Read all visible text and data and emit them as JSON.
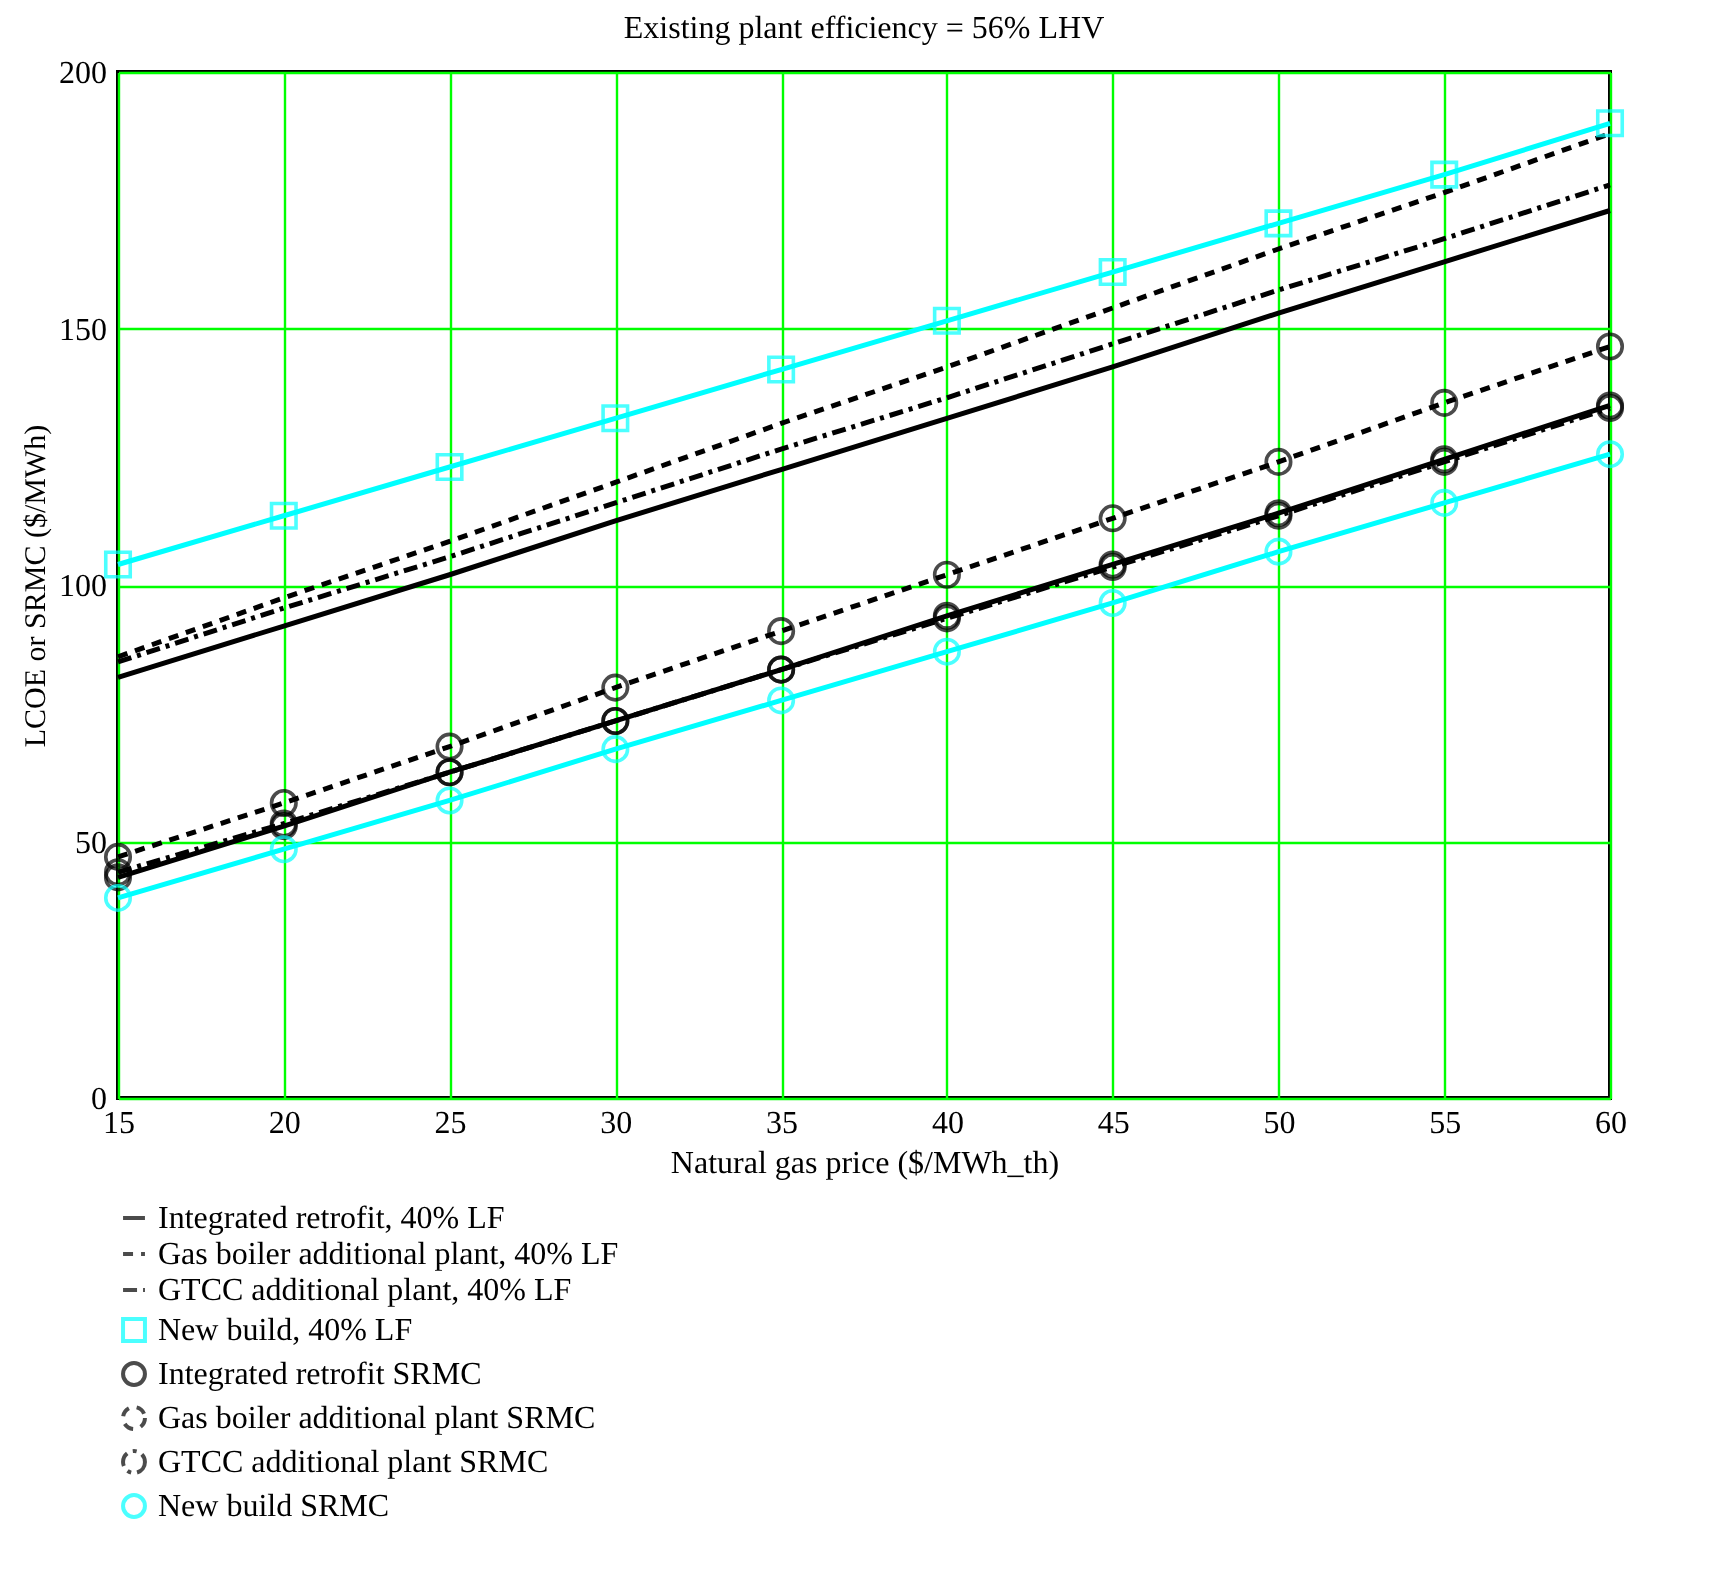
{
  "chart_data": {
    "type": "line",
    "title": "Existing plant efficiency = 56% LHV",
    "xlabel": "Natural gas price ($/MWh_th)",
    "ylabel": "LCOE or SRMC ($/MWh)",
    "x": [
      15,
      20,
      25,
      30,
      35,
      40,
      45,
      50,
      55,
      60
    ],
    "xlim": [
      15,
      60
    ],
    "xticks": [
      15,
      20,
      25,
      30,
      35,
      40,
      45,
      50,
      55,
      60
    ],
    "ylim": [
      0,
      200
    ],
    "yticks": [
      0,
      50,
      100,
      150,
      200
    ],
    "grid": true,
    "legend": "bottom left",
    "series": [
      {
        "name": "Integrated retrofit, 40% LF",
        "color": "#000000",
        "line_style": "solid",
        "marker": "none",
        "values": [
          82,
          92,
          102,
          112.5,
          122.5,
          132.5,
          142.5,
          153,
          163,
          173
        ]
      },
      {
        "name": "Gas boiler additional plant, 40% LF",
        "color": "#000000",
        "line_style": "dashed",
        "marker": "none",
        "values": [
          86,
          97.5,
          108.5,
          120,
          131.5,
          142.5,
          154,
          165.5,
          176.5,
          188
        ]
      },
      {
        "name": "GTCC additional plant, 40% LF",
        "color": "#000000",
        "line_style": "dashdot",
        "marker": "none",
        "values": [
          85,
          95.5,
          105.5,
          116,
          126.5,
          136.5,
          147,
          157.5,
          167.5,
          178
        ]
      },
      {
        "name": "New build, 40% LF",
        "color": "#00ffff",
        "line_style": "solid",
        "marker": "square",
        "values": [
          104,
          113.5,
          123,
          132.5,
          142,
          151.5,
          161,
          170.5,
          180,
          190
        ]
      },
      {
        "name": "Integrated retrofit SRMC",
        "color": "#000000",
        "line_style": "solid",
        "marker": "circle",
        "values": [
          43,
          53,
          63.5,
          73.5,
          83.5,
          94,
          104,
          114,
          124.5,
          135
        ]
      },
      {
        "name": "Gas boiler additional plant SRMC",
        "color": "#000000",
        "line_style": "dashed",
        "marker": "circle",
        "values": [
          47,
          57.5,
          68.5,
          80,
          91,
          102,
          113,
          124,
          135.5,
          146.5
        ]
      },
      {
        "name": "GTCC additional plant SRMC",
        "color": "#000000",
        "line_style": "dashdot",
        "marker": "circle",
        "values": [
          44,
          53.5,
          63.5,
          73.5,
          83.5,
          93.5,
          103.5,
          113.5,
          124,
          134.5
        ]
      },
      {
        "name": "New build SRMC",
        "color": "#00ffff",
        "line_style": "solid",
        "marker": "circle",
        "values": [
          39,
          48.5,
          58,
          68,
          77.5,
          87,
          96.5,
          106.5,
          116,
          125.5
        ]
      }
    ]
  }
}
